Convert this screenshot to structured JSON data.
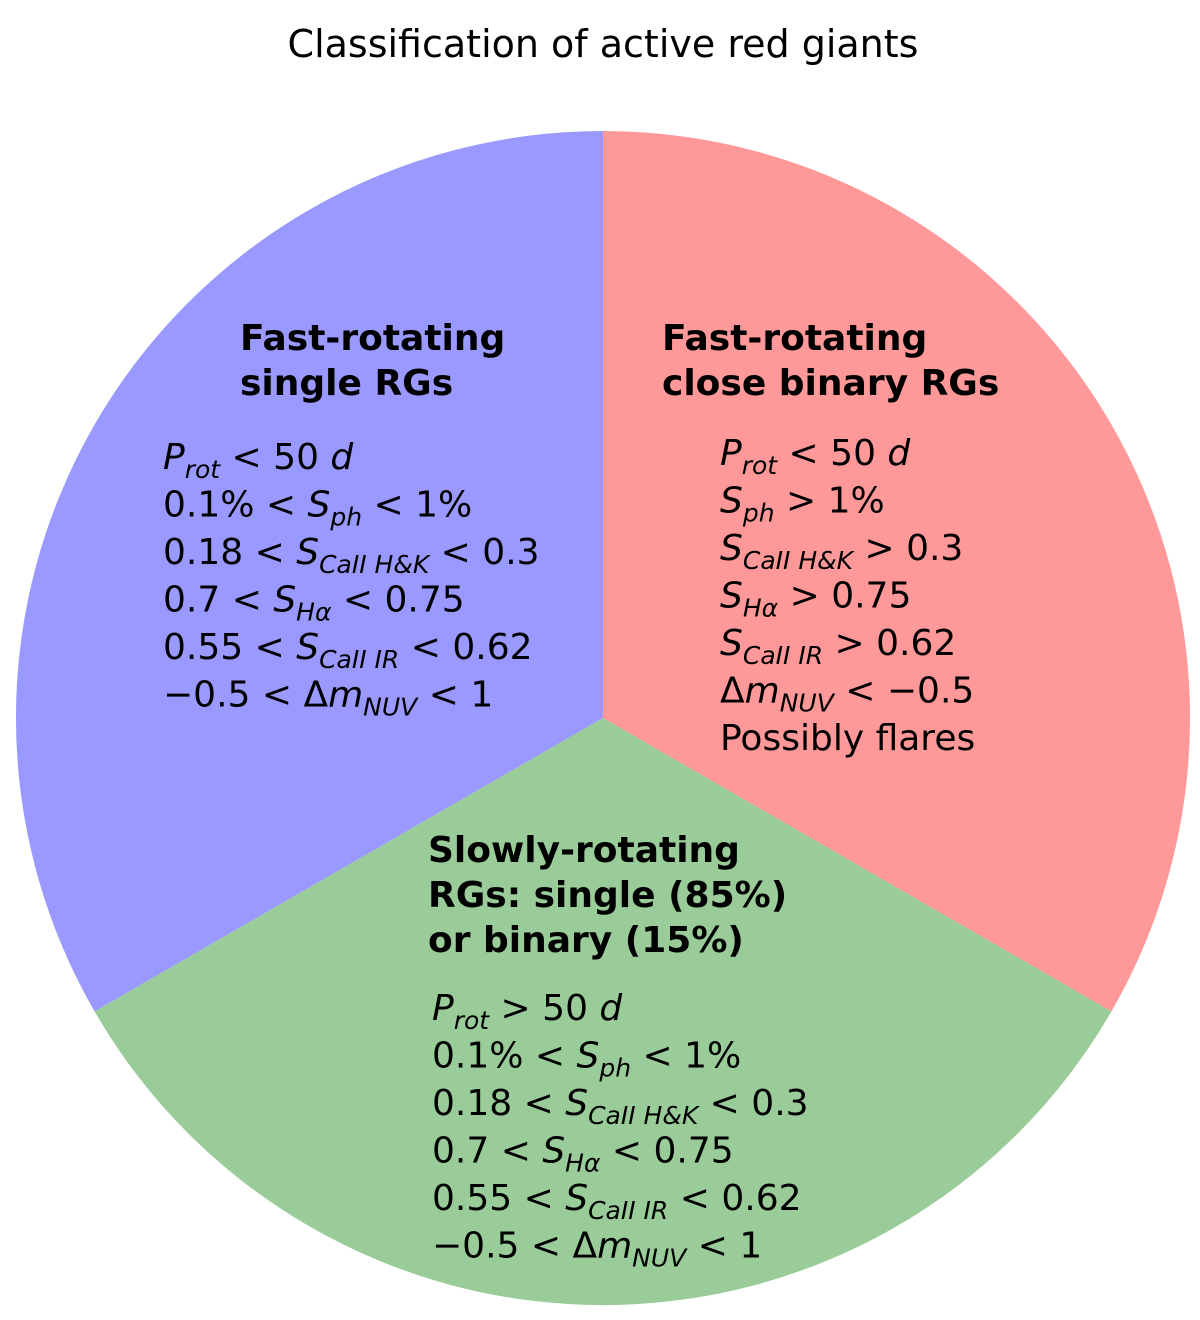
{
  "title": "Classification of active red giants",
  "sections": [
    {
      "color": "#9999ff",
      "heading": [
        "Fast-rotating",
        "single RGs"
      ],
      "criteria": [
        [
          {
            "v": "P",
            "sub": "rot"
          },
          " < 50 ",
          {
            "v": "d"
          }
        ],
        [
          "0.1% < ",
          {
            "v": "S",
            "sub": "ph"
          },
          " < 1%"
        ],
        [
          "0.18 < ",
          {
            "v": "S",
            "sub": "CaII H&K"
          },
          " < 0.3"
        ],
        [
          "0.7 < ",
          {
            "v": "S",
            "sub": "Hα"
          },
          " < 0.75"
        ],
        [
          "0.55 < ",
          {
            "v": "S",
            "sub": "CaII IR"
          },
          " < 0.62"
        ],
        [
          "−0.5 < Δ",
          {
            "v": "m",
            "sub": "NUV"
          },
          " < 1"
        ]
      ]
    },
    {
      "color": "#ff9999",
      "heading": [
        "Fast-rotating",
        "close binary RGs"
      ],
      "criteria": [
        [
          {
            "v": "P",
            "sub": "rot"
          },
          " < 50 ",
          {
            "v": "d"
          }
        ],
        [
          {
            "v": "S",
            "sub": "ph"
          },
          " > 1%"
        ],
        [
          {
            "v": "S",
            "sub": "CaII H&K"
          },
          " > 0.3"
        ],
        [
          {
            "v": "S",
            "sub": "Hα"
          },
          " > 0.75"
        ],
        [
          {
            "v": "S",
            "sub": "CaII IR"
          },
          " > 0.62"
        ],
        [
          "Δ",
          {
            "v": "m",
            "sub": "NUV"
          },
          " < −0.5"
        ],
        [
          "Possibly flares"
        ]
      ]
    },
    {
      "color": "#99cc99",
      "heading": [
        "Slowly-rotating",
        "RGs: single (85%)",
        "or binary (15%)"
      ],
      "criteria": [
        [
          {
            "v": "P",
            "sub": "rot"
          },
          " > 50 ",
          {
            "v": "d"
          }
        ],
        [
          "0.1% < ",
          {
            "v": "S",
            "sub": "ph"
          },
          " < 1%"
        ],
        [
          "0.18 < ",
          {
            "v": "S",
            "sub": "CaII H&K"
          },
          " < 0.3"
        ],
        [
          "0.7 < ",
          {
            "v": "S",
            "sub": "Hα"
          },
          " < 0.75"
        ],
        [
          "0.55 < ",
          {
            "v": "S",
            "sub": "CaII IR"
          },
          " < 0.62"
        ],
        [
          "−0.5 < Δ",
          {
            "v": "m",
            "sub": "NUV"
          },
          " < 1"
        ]
      ]
    }
  ]
}
